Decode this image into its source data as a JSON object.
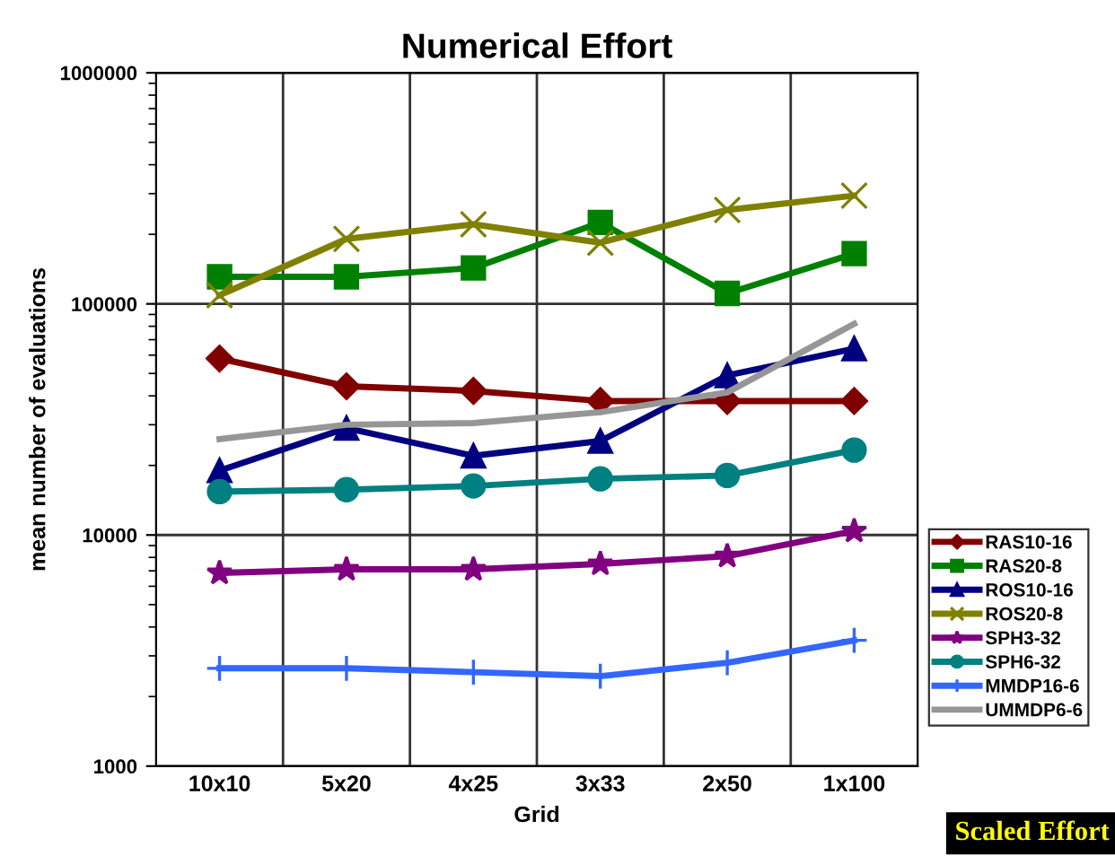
{
  "chart_data": {
    "type": "line",
    "title": "Numerical Effort",
    "xlabel": "Grid",
    "ylabel": "mean number of evaluations",
    "categories": [
      "10x10",
      "5x20",
      "4x25",
      "3x33",
      "2x50",
      "1x100"
    ],
    "log": true,
    "ylim": [
      1000,
      1000000
    ],
    "yticks": [
      1000,
      10000,
      100000,
      1000000
    ],
    "grid": true,
    "legend": "right",
    "annotations": [
      "Scaled Effort"
    ],
    "series": [
      {
        "name": "RAS10-16",
        "color": "#800000",
        "marker": "diamond",
        "values": [
          58000,
          44000,
          42000,
          38000,
          38000,
          38000
        ]
      },
      {
        "name": "RAS20-8",
        "color": "#008000",
        "marker": "square",
        "values": [
          131000,
          131000,
          143000,
          225000,
          111000,
          165000
        ]
      },
      {
        "name": "ROS10-16",
        "color": "#000080",
        "marker": "triangle",
        "values": [
          19000,
          29000,
          22000,
          25500,
          49000,
          64000
        ]
      },
      {
        "name": "ROS20-8",
        "color": "#808000",
        "marker": "cross",
        "values": [
          109000,
          191000,
          221000,
          184000,
          255000,
          294000
        ]
      },
      {
        "name": "SPH3-32",
        "color": "#800080",
        "marker": "star",
        "values": [
          6850,
          7100,
          7100,
          7500,
          8100,
          10400
        ]
      },
      {
        "name": "SPH6-32",
        "color": "#008080",
        "marker": "circle",
        "values": [
          15400,
          15700,
          16300,
          17500,
          18100,
          23300
        ]
      },
      {
        "name": "MMDP16-6",
        "color": "#3366ff",
        "marker": "cross",
        "values": [
          2650,
          2650,
          2550,
          2450,
          2800,
          3500
        ]
      },
      {
        "name": "UMMDP6-6",
        "color": "#969696",
        "marker": "none",
        "values": [
          26000,
          30000,
          30500,
          34000,
          41400,
          82000
        ]
      }
    ]
  }
}
